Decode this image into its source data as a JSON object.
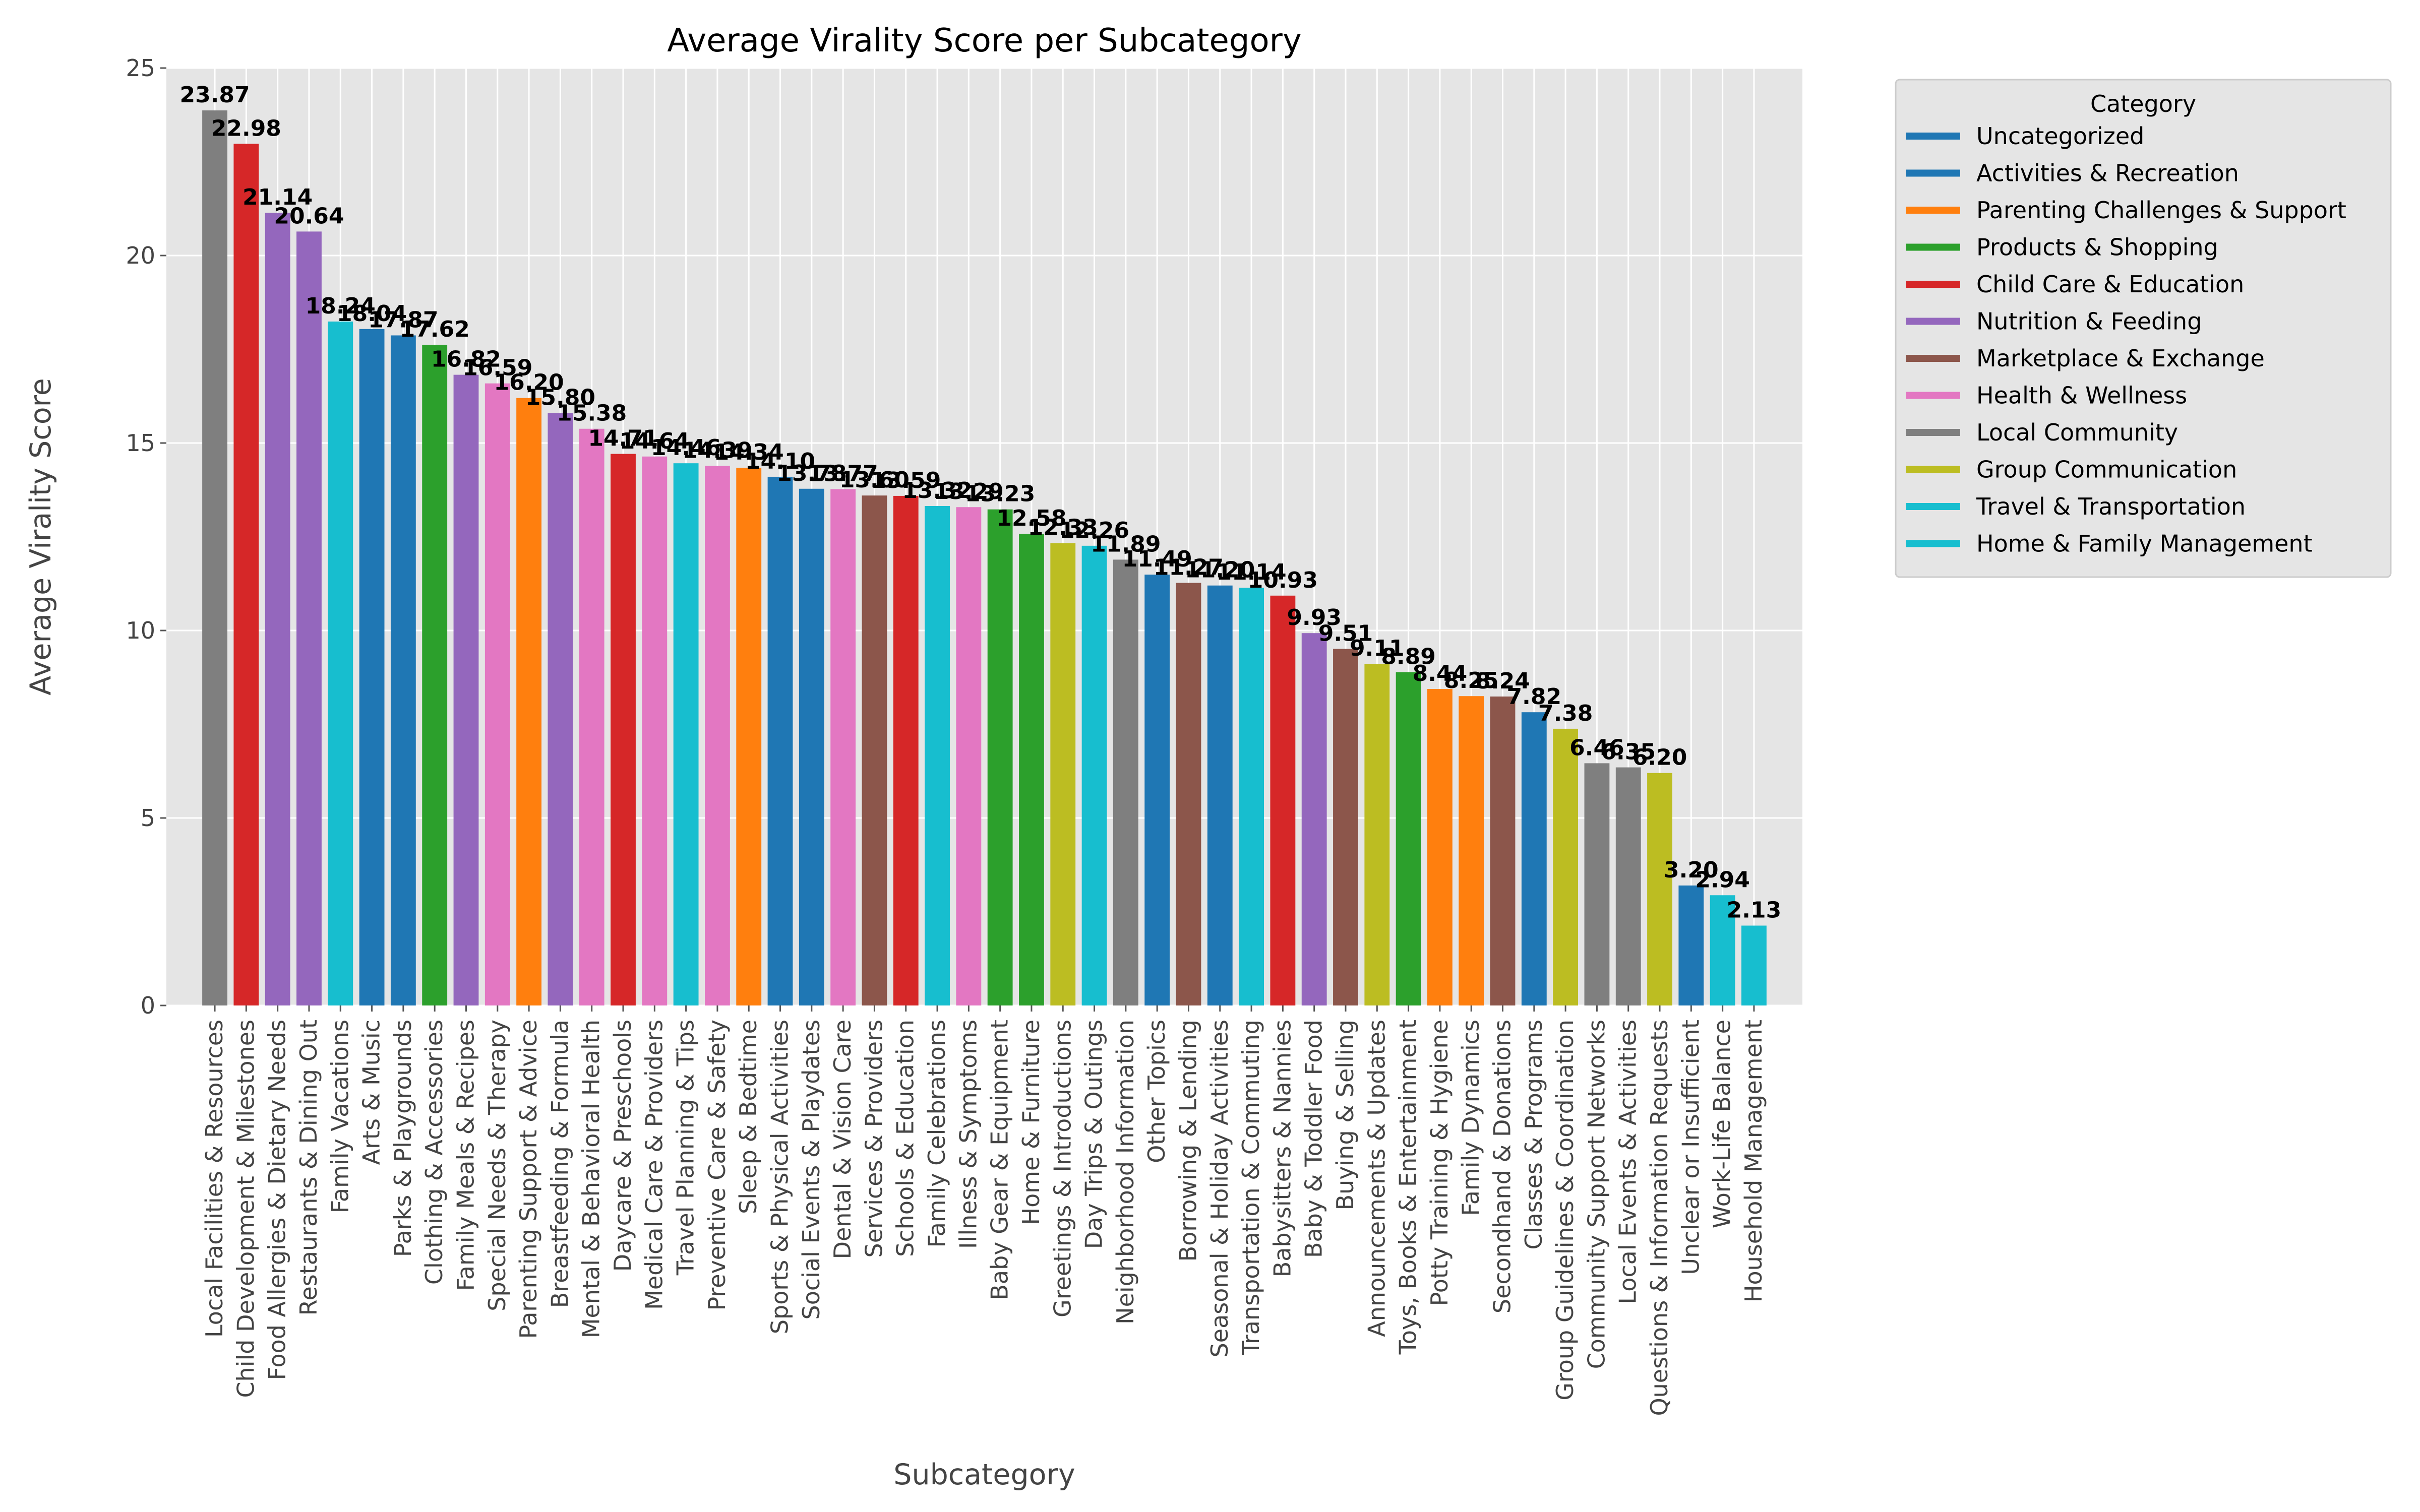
{
  "chart_data": {
    "type": "bar",
    "title": "Average Virality Score per Subcategory",
    "xlabel": "Subcategory",
    "ylabel": "Average Virality Score",
    "ylim": [
      0,
      25
    ],
    "yticks": [
      0,
      5,
      10,
      15,
      20,
      25
    ],
    "grid": true,
    "legend_title": "Category",
    "legend_position": "outside upper right",
    "legend": [
      {
        "name": "Uncategorized",
        "color": "#1f77b4"
      },
      {
        "name": "Activities & Recreation",
        "color": "#1f77b4"
      },
      {
        "name": "Parenting Challenges & Support",
        "color": "#ff7f0e"
      },
      {
        "name": "Products & Shopping",
        "color": "#2ca02c"
      },
      {
        "name": "Child Care & Education",
        "color": "#d62728"
      },
      {
        "name": "Nutrition & Feeding",
        "color": "#9467bd"
      },
      {
        "name": "Marketplace & Exchange",
        "color": "#8c564b"
      },
      {
        "name": "Health & Wellness",
        "color": "#e377c2"
      },
      {
        "name": "Local Community",
        "color": "#7f7f7f"
      },
      {
        "name": "Group Communication",
        "color": "#bcbd22"
      },
      {
        "name": "Travel & Transportation",
        "color": "#17becf"
      },
      {
        "name": "Home & Family Management",
        "color": "#17becf"
      }
    ],
    "bars": [
      {
        "category": "Local Facilities & Resources",
        "value": 23.87,
        "label": "23.87",
        "color": "#7f7f7f"
      },
      {
        "category": "Child Development & Milestones",
        "value": 22.98,
        "label": "22.98",
        "color": "#d62728"
      },
      {
        "category": "Food Allergies & Dietary Needs",
        "value": 21.14,
        "label": "21.14",
        "color": "#9467bd"
      },
      {
        "category": "Restaurants & Dining Out",
        "value": 20.64,
        "label": "20.64",
        "color": "#9467bd"
      },
      {
        "category": "Family Vacations",
        "value": 18.24,
        "label": "18.24",
        "color": "#17becf"
      },
      {
        "category": "Arts & Music",
        "value": 18.04,
        "label": "18.04",
        "color": "#1f77b4"
      },
      {
        "category": "Parks & Playgrounds",
        "value": 17.87,
        "label": "17.87",
        "color": "#1f77b4"
      },
      {
        "category": "Clothing & Accessories",
        "value": 17.62,
        "label": "17.62",
        "color": "#2ca02c"
      },
      {
        "category": "Family Meals & Recipes",
        "value": 16.82,
        "label": "16.82",
        "color": "#9467bd"
      },
      {
        "category": "Special Needs & Therapy",
        "value": 16.59,
        "label": "16.59",
        "color": "#e377c2"
      },
      {
        "category": "Parenting Support & Advice",
        "value": 16.2,
        "label": "16.20",
        "color": "#ff7f0e"
      },
      {
        "category": "Breastfeeding & Formula",
        "value": 15.8,
        "label": "15.80",
        "color": "#9467bd"
      },
      {
        "category": "Mental & Behavioral Health",
        "value": 15.38,
        "label": "15.38",
        "color": "#e377c2"
      },
      {
        "category": "Daycare & Preschools",
        "value": 14.71,
        "label": "14.71",
        "color": "#d62728"
      },
      {
        "category": "Medical Care & Providers",
        "value": 14.64,
        "label": "14.64",
        "color": "#e377c2"
      },
      {
        "category": "Travel Planning & Tips",
        "value": 14.46,
        "label": "14.46",
        "color": "#17becf"
      },
      {
        "category": "Preventive Care & Safety",
        "value": 14.39,
        "label": "14.39",
        "color": "#e377c2"
      },
      {
        "category": "Sleep & Bedtime",
        "value": 14.34,
        "label": "14.34",
        "color": "#ff7f0e"
      },
      {
        "category": "Sports & Physical Activities",
        "value": 14.1,
        "label": "14.10",
        "color": "#1f77b4"
      },
      {
        "category": "Social Events & Playdates",
        "value": 13.78,
        "label": "13.78",
        "color": "#1f77b4"
      },
      {
        "category": "Dental & Vision Care",
        "value": 13.77,
        "label": "13.77",
        "color": "#e377c2"
      },
      {
        "category": "Services & Providers",
        "value": 13.6,
        "label": "13.60",
        "color": "#8c564b"
      },
      {
        "category": "Schools & Education",
        "value": 13.59,
        "label": "13.59",
        "color": "#d62728"
      },
      {
        "category": "Family Celebrations",
        "value": 13.32,
        "label": "13.32",
        "color": "#17becf"
      },
      {
        "category": "Illness & Symptoms",
        "value": 13.29,
        "label": "13.29",
        "color": "#e377c2"
      },
      {
        "category": "Baby Gear & Equipment",
        "value": 13.23,
        "label": "13.23",
        "color": "#2ca02c"
      },
      {
        "category": "Home & Furniture",
        "value": 12.58,
        "label": "12.58",
        "color": "#2ca02c"
      },
      {
        "category": "Greetings & Introductions",
        "value": 12.33,
        "label": "12.33",
        "color": "#bcbd22"
      },
      {
        "category": "Day Trips & Outings",
        "value": 12.26,
        "label": "12.26",
        "color": "#17becf"
      },
      {
        "category": "Neighborhood Information",
        "value": 11.89,
        "label": "11.89",
        "color": "#7f7f7f"
      },
      {
        "category": "Other Topics",
        "value": 11.49,
        "label": "11.49",
        "color": "#1f77b4"
      },
      {
        "category": "Borrowing & Lending",
        "value": 11.27,
        "label": "11.27",
        "color": "#8c564b"
      },
      {
        "category": "Seasonal & Holiday Activities",
        "value": 11.2,
        "label": "11.20",
        "color": "#1f77b4"
      },
      {
        "category": "Transportation & Commuting",
        "value": 11.14,
        "label": "11.14",
        "color": "#17becf"
      },
      {
        "category": "Babysitters & Nannies",
        "value": 10.93,
        "label": "10.93",
        "color": "#d62728"
      },
      {
        "category": "Baby & Toddler Food",
        "value": 9.93,
        "label": "9.93",
        "color": "#9467bd"
      },
      {
        "category": "Buying & Selling",
        "value": 9.51,
        "label": "9.51",
        "color": "#8c564b"
      },
      {
        "category": "Announcements & Updates",
        "value": 9.11,
        "label": "9.11",
        "color": "#bcbd22"
      },
      {
        "category": "Toys, Books & Entertainment",
        "value": 8.89,
        "label": "8.89",
        "color": "#2ca02c"
      },
      {
        "category": "Potty Training & Hygiene",
        "value": 8.44,
        "label": "8.44",
        "color": "#ff7f0e"
      },
      {
        "category": "Family Dynamics",
        "value": 8.25,
        "label": "8.25",
        "color": "#ff7f0e"
      },
      {
        "category": "Secondhand & Donations",
        "value": 8.24,
        "label": "8.24",
        "color": "#8c564b"
      },
      {
        "category": "Classes & Programs",
        "value": 7.82,
        "label": "7.82",
        "color": "#1f77b4"
      },
      {
        "category": "Group Guidelines & Coordination",
        "value": 7.38,
        "label": "7.38",
        "color": "#bcbd22"
      },
      {
        "category": "Community Support Networks",
        "value": 6.46,
        "label": "6.46",
        "color": "#7f7f7f"
      },
      {
        "category": "Local Events & Activities",
        "value": 6.35,
        "label": "6.35",
        "color": "#7f7f7f"
      },
      {
        "category": "Questions & Information Requests",
        "value": 6.2,
        "label": "6.20",
        "color": "#bcbd22"
      },
      {
        "category": "Unclear or Insufficient",
        "value": 3.2,
        "label": "3.20",
        "color": "#1f77b4"
      },
      {
        "category": "Work-Life Balance",
        "value": 2.94,
        "label": "2.94",
        "color": "#17becf"
      },
      {
        "category": "Household Management",
        "value": 2.13,
        "label": "2.13",
        "color": "#17becf"
      }
    ]
  }
}
